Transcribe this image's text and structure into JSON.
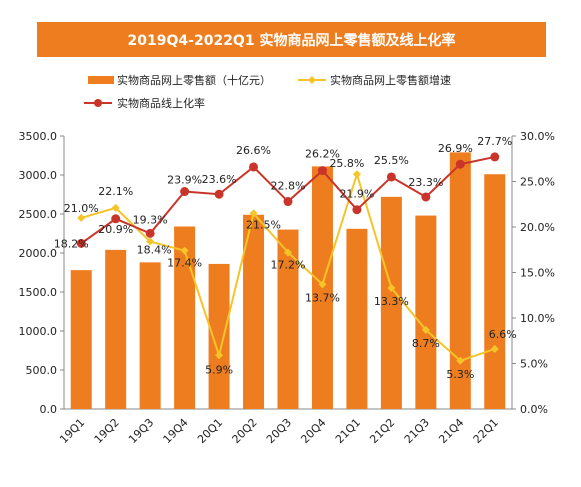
{
  "title": "2019Q4-2022Q1 实物商品网上零售额及线上化率",
  "legend": {
    "bar": "实物商品网上零售额（十亿元）",
    "growth": "实物商品网上零售额增速",
    "online_rate": "实物商品线上化率"
  },
  "colors": {
    "bar": "#ee7d1f",
    "growth": "#f5c428",
    "online_rate": "#c9352a",
    "title_bg": "#ee7d1f"
  },
  "chart_data": {
    "type": "bar",
    "categories": [
      "19Q1",
      "19Q2",
      "19Q3",
      "19Q4",
      "20Q1",
      "20Q2",
      "20Q3",
      "20Q4",
      "21Q1",
      "21Q2",
      "21Q3",
      "21Q4",
      "22Q1"
    ],
    "series": [
      {
        "name": "实物商品网上零售额（十亿元）",
        "type": "bar",
        "axis": "left",
        "values": [
          1780,
          2040,
          1880,
          2340,
          1860,
          2490,
          2300,
          3110,
          2310,
          2720,
          2480,
          3290,
          3010
        ]
      },
      {
        "name": "实物商品网上零售额增速",
        "type": "line",
        "axis": "right",
        "values": [
          21.0,
          22.1,
          18.4,
          17.4,
          5.9,
          21.5,
          17.2,
          13.7,
          25.8,
          13.3,
          8.7,
          5.3,
          6.6
        ],
        "labels": [
          "21.0%",
          "22.1%",
          "18.4%",
          "17.4%",
          "5.9%",
          "21.5%",
          "17.2%",
          "13.7%",
          "25.8%",
          "13.3%",
          "8.7%",
          "5.3%",
          "6.6%"
        ]
      },
      {
        "name": "实物商品线上化率",
        "type": "line",
        "axis": "right",
        "values": [
          18.2,
          20.9,
          19.3,
          23.9,
          23.6,
          26.6,
          22.8,
          26.2,
          21.9,
          25.5,
          23.3,
          26.9,
          27.7
        ],
        "labels": [
          "18.2%",
          "20.9%",
          "19.3%",
          "23.9%",
          "23.6%",
          "26.6%",
          "22.8%",
          "26.2%",
          "21.9%",
          "25.5%",
          "23.3%",
          "26.9%",
          "27.7%"
        ]
      }
    ],
    "y_left": {
      "lim": [
        0,
        3500
      ],
      "ticks": [
        "0.0",
        "500.0",
        "1000.0",
        "1500.0",
        "2000.0",
        "2500.0",
        "3000.0",
        "3500.0"
      ]
    },
    "y_right": {
      "lim": [
        0,
        30
      ],
      "ticks": [
        "0.0%",
        "5.0%",
        "10.0%",
        "15.0%",
        "20.0%",
        "25.0%",
        "30.0%"
      ]
    },
    "grid": false
  }
}
